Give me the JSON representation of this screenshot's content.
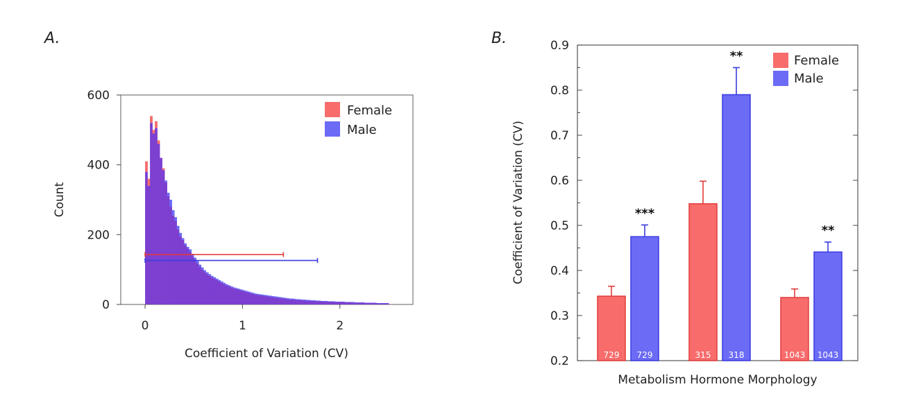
{
  "colors": {
    "female": "#f86c6c",
    "male": "#6b6bf6",
    "female_edge": "#e23b3b",
    "male_edge": "#3b3be0",
    "overlap": "#7c3fd0"
  },
  "chart_data": [
    {
      "panel_label": "A.",
      "type": "histogram",
      "xlabel": "Coefficient of Variation (CV)",
      "ylabel": "Count",
      "xlim": [
        -0.25,
        2.75
      ],
      "ylim": [
        0,
        600
      ],
      "x_ticks": [
        "0",
        "1",
        "2"
      ],
      "y_ticks": [
        "0",
        "200",
        "400",
        "600"
      ],
      "legend": [
        "Female",
        "Male"
      ],
      "legend_position": "top-right",
      "bin_width": 0.025,
      "bin_start": 0,
      "series": [
        {
          "name": "Female",
          "values": [
            410,
            360,
            540,
            500,
            525,
            470,
            420,
            390,
            350,
            310,
            280,
            255,
            240,
            215,
            195,
            185,
            170,
            160,
            150,
            138,
            128,
            118,
            108,
            100,
            93,
            87,
            82,
            78,
            74,
            70,
            66,
            62,
            58,
            55,
            52,
            49,
            46,
            44,
            42,
            40,
            38,
            36,
            34,
            32,
            30,
            28,
            27,
            26,
            25,
            24,
            23,
            22,
            21,
            20,
            19,
            18,
            17,
            16,
            15,
            14,
            14,
            13,
            13,
            12,
            12,
            11,
            11,
            10,
            10,
            10,
            9,
            9,
            9,
            8,
            8,
            8,
            8,
            7,
            7,
            7,
            7,
            6,
            6,
            6,
            6,
            5,
            5,
            5,
            5,
            5,
            4,
            4,
            4,
            4,
            4,
            3,
            3,
            3,
            3,
            3
          ]
        },
        {
          "name": "Male",
          "values": [
            380,
            340,
            520,
            490,
            505,
            460,
            420,
            385,
            355,
            320,
            300,
            270,
            250,
            225,
            205,
            190,
            175,
            165,
            158,
            145,
            134,
            124,
            114,
            106,
            98,
            92,
            87,
            82,
            78,
            74,
            70,
            66,
            62,
            58,
            55,
            52,
            49,
            47,
            45,
            43,
            41,
            39,
            37,
            35,
            33,
            31,
            30,
            29,
            28,
            27,
            26,
            25,
            24,
            23,
            22,
            21,
            20,
            19,
            18,
            17,
            17,
            16,
            15,
            15,
            14,
            14,
            13,
            13,
            12,
            12,
            11,
            11,
            10,
            10,
            10,
            9,
            9,
            9,
            8,
            8,
            8,
            8,
            7,
            7,
            7,
            7,
            6,
            6,
            6,
            6,
            5,
            5,
            5,
            5,
            5,
            4,
            4,
            4,
            4,
            4
          ]
        }
      ],
      "range_bars": [
        {
          "name": "Female",
          "x": [
            0,
            1.42
          ],
          "y": 143
        },
        {
          "name": "Male",
          "x": [
            0,
            1.77
          ],
          "y": 126
        }
      ]
    },
    {
      "panel_label": "B.",
      "type": "bar",
      "xlabel": "Metabolism Hormone Morphology",
      "ylabel": "Coefficient of Variation (CV)",
      "ylim": [
        0.2,
        0.9
      ],
      "y_ticks": [
        "0.2",
        "0.3",
        "0.4",
        "0.5",
        "0.6",
        "0.7",
        "0.8",
        "0.9"
      ],
      "categories": [
        "Metabolism",
        "Hormone",
        "Morphology"
      ],
      "legend": [
        "Female",
        "Male"
      ],
      "legend_position": "top-right",
      "series": [
        {
          "name": "Female",
          "values": [
            0.343,
            0.548,
            0.34
          ],
          "errors": [
            0.022,
            0.05,
            0.019
          ],
          "n_labels": [
            "729",
            "315",
            "1043"
          ]
        },
        {
          "name": "Male",
          "values": [
            0.475,
            0.79,
            0.441
          ],
          "errors": [
            0.026,
            0.06,
            0.022
          ],
          "n_labels": [
            "729",
            "318",
            "1043"
          ]
        }
      ],
      "annotations": [
        "***",
        "**",
        "**"
      ]
    }
  ]
}
